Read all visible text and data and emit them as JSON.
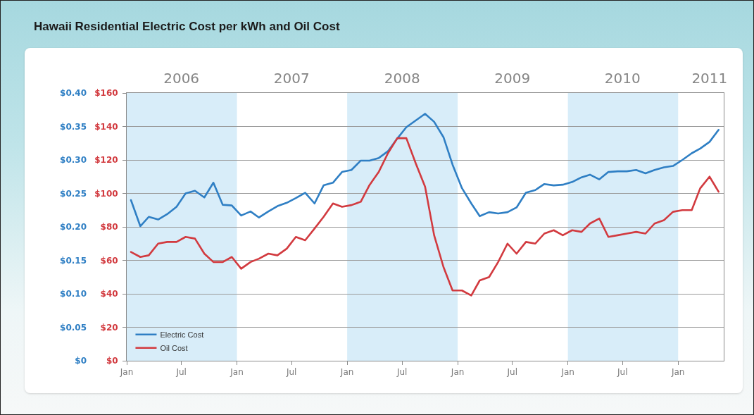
{
  "chart_data": {
    "type": "line",
    "title": "Hawaii Residential Electric Cost per kWh and Oil Cost",
    "x": [
      "2006-01-15",
      "2006-02-15",
      "2006-03-15",
      "2006-04-15",
      "2006-05-15",
      "2006-06-15",
      "2006-07-15",
      "2006-08-15",
      "2006-09-15",
      "2006-10-15",
      "2006-11-15",
      "2006-12-15",
      "2007-01-15",
      "2007-02-15",
      "2007-03-15",
      "2007-04-15",
      "2007-05-15",
      "2007-06-15",
      "2007-07-15",
      "2007-08-15",
      "2007-09-15",
      "2007-10-15",
      "2007-11-15",
      "2007-12-15",
      "2008-01-15",
      "2008-02-15",
      "2008-03-15",
      "2008-04-15",
      "2008-05-15",
      "2008-06-15",
      "2008-07-15",
      "2008-08-15",
      "2008-09-15",
      "2008-10-15",
      "2008-11-15",
      "2008-12-15",
      "2009-01-15",
      "2009-02-15",
      "2009-03-15",
      "2009-04-15",
      "2009-05-15",
      "2009-06-15",
      "2009-07-15",
      "2009-08-15",
      "2009-09-15",
      "2009-10-15",
      "2009-11-15",
      "2009-12-15",
      "2010-01-15",
      "2010-02-15",
      "2010-03-15",
      "2010-04-15",
      "2010-05-15",
      "2010-06-15",
      "2010-07-15",
      "2010-08-15",
      "2010-09-15",
      "2010-10-15",
      "2010-11-15",
      "2010-12-15",
      "2011-01-15",
      "2011-02-15",
      "2011-03-15",
      "2011-04-15",
      "2011-05-15"
    ],
    "series": [
      {
        "name": "Electric Cost",
        "color": "#2f7fc4",
        "values": [
          0.24,
          0.201,
          0.215,
          0.211,
          0.219,
          0.23,
          0.25,
          0.254,
          0.244,
          0.266,
          0.233,
          0.232,
          0.217,
          0.223,
          0.214,
          0.223,
          0.231,
          0.236,
          0.243,
          0.251,
          0.235,
          0.262,
          0.266,
          0.282,
          0.285,
          0.299,
          0.299,
          0.303,
          0.313,
          0.332,
          0.349,
          0.359,
          0.369,
          0.357,
          0.334,
          0.293,
          0.258,
          0.235,
          0.216,
          0.222,
          0.22,
          0.222,
          0.229,
          0.251,
          0.255,
          0.264,
          0.262,
          0.263,
          0.267,
          0.274,
          0.278,
          0.271,
          0.282,
          0.283,
          0.283,
          0.285,
          0.28,
          0.285,
          0.289,
          0.291,
          0.3,
          0.31,
          0.317,
          0.327,
          0.345
        ]
      },
      {
        "name": "Oil Cost",
        "color": "#d23a3f",
        "axis": "y2",
        "values": [
          65,
          62,
          63,
          70,
          71,
          71,
          74,
          73,
          64,
          59,
          59,
          62,
          55,
          59,
          61,
          64,
          63,
          67,
          74,
          72,
          79,
          86,
          94,
          92,
          93,
          95,
          105,
          113,
          124,
          133,
          133,
          118,
          104,
          75,
          56,
          42,
          42,
          39,
          48,
          50,
          59,
          70,
          64,
          71,
          70,
          76,
          78,
          75,
          78,
          77,
          82,
          85,
          74,
          75,
          76,
          77,
          76,
          82,
          84,
          89,
          90,
          90,
          103,
          110,
          101
        ]
      }
    ],
    "xlim": [
      "2006-01-01",
      "2011-06-01"
    ],
    "xticks": [
      {
        "value": "2006-01-01",
        "label": "Jan"
      },
      {
        "value": "2006-07-01",
        "label": "Jul"
      },
      {
        "value": "2007-01-01",
        "label": "Jan"
      },
      {
        "value": "2007-07-01",
        "label": "Jul"
      },
      {
        "value": "2008-01-01",
        "label": "Jan"
      },
      {
        "value": "2008-07-01",
        "label": "Jul"
      },
      {
        "value": "2009-01-01",
        "label": "Jan"
      },
      {
        "value": "2009-07-01",
        "label": "Jul"
      },
      {
        "value": "2010-01-01",
        "label": "Jan"
      },
      {
        "value": "2010-07-01",
        "label": "Jul"
      },
      {
        "value": "2011-01-01",
        "label": "Jan"
      }
    ],
    "x2lim": [
      "2006-01-01",
      "2011-06-01"
    ],
    "x2ticks": [
      {
        "value": "2006-07-01",
        "label": "2006"
      },
      {
        "value": "2007-07-01",
        "label": "2007"
      },
      {
        "value": "2008-07-01",
        "label": "2008"
      },
      {
        "value": "2009-07-01",
        "label": "2009"
      },
      {
        "value": "2010-07-01",
        "label": "2010"
      },
      {
        "value": "2011-04-15",
        "label": "2011"
      }
    ],
    "ylim": [
      0,
      0.4
    ],
    "yticks": [
      {
        "value": 0,
        "label": "$0"
      },
      {
        "value": 0.05,
        "label": "$0.05"
      },
      {
        "value": 0.1,
        "label": "$0.10"
      },
      {
        "value": 0.15,
        "label": "$0.15"
      },
      {
        "value": 0.2,
        "label": "$0.20"
      },
      {
        "value": 0.25,
        "label": "$0.25"
      },
      {
        "value": 0.3,
        "label": "$0.30"
      },
      {
        "value": 0.35,
        "label": "$0.35"
      },
      {
        "value": 0.4,
        "label": "$0.40"
      }
    ],
    "y2lim": [
      0,
      160
    ],
    "y2ticks": [
      {
        "value": 0,
        "label": "$0"
      },
      {
        "value": 20,
        "label": "$20"
      },
      {
        "value": 40,
        "label": "$40"
      },
      {
        "value": 60,
        "label": "$60"
      },
      {
        "value": 80,
        "label": "$80"
      },
      {
        "value": 100,
        "label": "$100"
      },
      {
        "value": 120,
        "label": "$120"
      },
      {
        "value": 140,
        "label": "$140"
      },
      {
        "value": 160,
        "label": "$160"
      }
    ],
    "bands": [
      {
        "axis": "x",
        "from": "2006-01-01",
        "to": "2007-01-01",
        "color": "#d8edf9"
      },
      {
        "axis": "x",
        "from": "2008-01-01",
        "to": "2009-01-01",
        "color": "#d8edf9"
      },
      {
        "axis": "x",
        "from": "2010-01-01",
        "to": "2011-01-01",
        "color": "#d8edf9"
      }
    ],
    "grid": "y",
    "legend": "bottom left",
    "marker": "none",
    "line_style": "solid"
  }
}
